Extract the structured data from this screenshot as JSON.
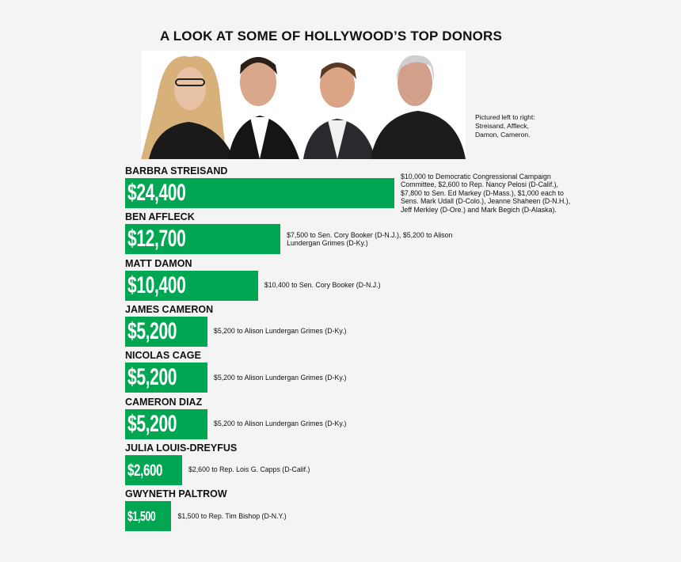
{
  "chart_data": {
    "type": "bar",
    "orientation": "horizontal",
    "title": "A LOOK AT SOME OF HOLLYWOOD’S TOP DONORS",
    "caption": "Pictured left to right: Streisand, Affleck, Damon, Cameron.",
    "categories": [
      "BARBRA STREISAND",
      "BEN AFFLECK",
      "MATT DAMON",
      "JAMES CAMERON",
      "NICOLAS CAGE",
      "CAMERON DIAZ",
      "JULIA LOUIS-DREYFUS",
      "GWYNETH PALTROW"
    ],
    "values": [
      24400,
      12700,
      10400,
      5200,
      5200,
      5200,
      2600,
      1500
    ],
    "value_labels": [
      "$24,400",
      "$12,700",
      "$10,400",
      "$5,200",
      "$5,200",
      "$5,200",
      "$2,600",
      "$1,500"
    ],
    "annotations": [
      "$10,000 to Democratic Congressional Campaign Committee, $2,600 to Rep. Nancy Pelosi (D-Calif.), $7,800 to Sen. Ed Markey (D-Mass.), $1,000 each to Sens. Mark Udall (D-Colo.), Jeanne Shaheen (D-N.H.), Jeff Merkley (D-Ore.) and Mark Begich (D-Alaska).",
      "$7,500 to Sen. Cory Booker (D-N.J.), $5,200 to Alison Lundergan Grimes (D-Ky.)",
      "$10,400 to Sen. Cory Booker (D-N.J.)",
      "$5,200 to Alison Lundergan Grimes (D-Ky.)",
      "$5,200 to Alison Lundergan Grimes (D-Ky.)",
      "$5,200 to Alison Lundergan Grimes (D-Ky.)",
      "$2,600 to Rep. Lois G. Capps (D-Calif.)",
      "$1,500 to Rep. Tim Bishop (D-N.Y.)"
    ],
    "color": "#00a651"
  }
}
